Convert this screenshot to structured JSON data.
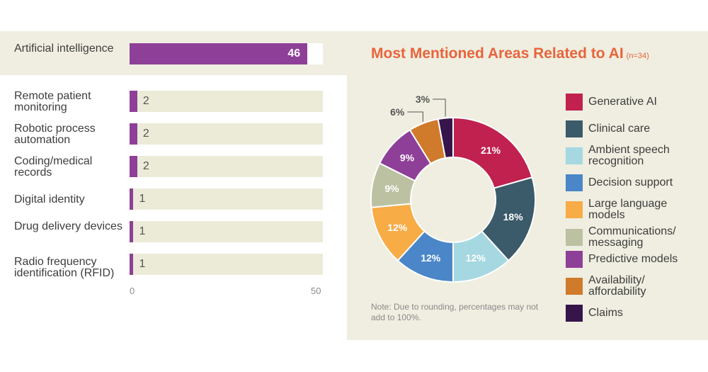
{
  "chart_data": [
    {
      "type": "bar",
      "orientation": "horizontal",
      "categories": [
        "Artificial intelligence",
        "Remote patient monitoring",
        "Robotic process automation",
        "Coding/medical records",
        "Digital identity",
        "Drug delivery devices",
        "Radio frequency identification (RFID)"
      ],
      "values": [
        46,
        2,
        2,
        2,
        1,
        1,
        1
      ],
      "xlim": [
        0,
        50
      ],
      "ticks": [
        "0",
        "50"
      ],
      "color": "#8e3f98"
    },
    {
      "type": "pie",
      "donut": true,
      "title": "Most Mentioned Areas Related to AI",
      "subtitle": "(n=34)",
      "categories": [
        "Generative AI",
        "Clinical care",
        "Ambient speech recognition",
        "Decision support",
        "Large language models",
        "Communications/ messaging",
        "Predictive models",
        "Availability/ affordability",
        "Claims"
      ],
      "values": [
        21,
        18,
        12,
        12,
        12,
        9,
        9,
        6,
        3
      ],
      "labels": [
        "21%",
        "18%",
        "12%",
        "12%",
        "12%",
        "9%",
        "9%",
        "6%",
        "3%"
      ],
      "colors": [
        "#c0214f",
        "#3b5a6a",
        "#a6d8e2",
        "#4a86c8",
        "#f7ac46",
        "#bcc1a1",
        "#8e3f98",
        "#d07a2b",
        "#35154a"
      ],
      "note": "Note: Due to rounding, percentages may not add to 100%.",
      "legend_position": "right"
    }
  ]
}
